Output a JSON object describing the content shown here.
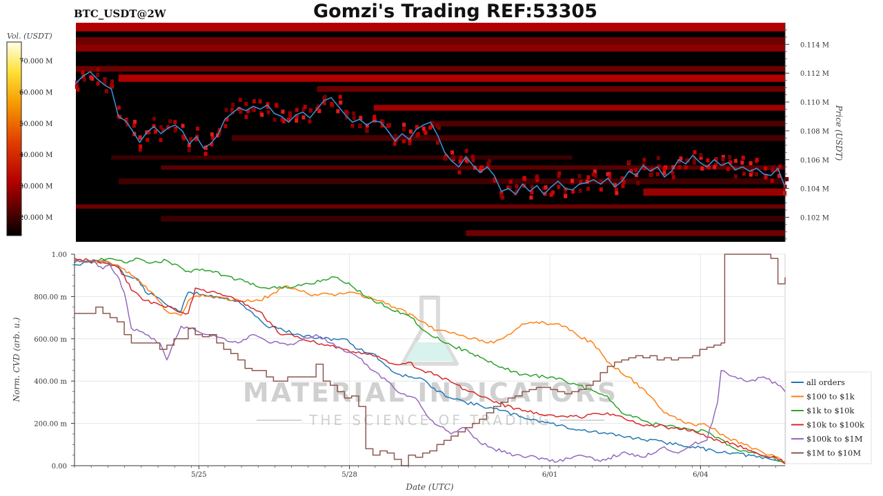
{
  "header": {
    "symbol": "BTC_USDT@2W",
    "title": "Gomzi's Trading REF:53305"
  },
  "watermark": {
    "brand": "MATERIAL INDICATORS",
    "tagline": "THE SCIENCE OF TRADING"
  },
  "colors": {
    "heatmap_bg": "#000000",
    "price_line": "#3a8fd0",
    "colorbar_top": "#fffff0",
    "colorbar_mid": "#f08a00",
    "colorbar_low": "#c80000"
  },
  "chart_data": [
    {
      "type": "heatmap",
      "colorbar_label": "Vol. (USDT)",
      "colorbar_ticks": [
        "70.000 M",
        "60.000 M",
        "50.000 M",
        "40.000 M",
        "30.000 M",
        "20.000 M"
      ],
      "colorbar_values": [
        70,
        60,
        50,
        40,
        30,
        20
      ],
      "colorbar_range": [
        14,
        76
      ],
      "ylabel": "Price (USDT)",
      "y_ticks": [
        "0.114 M",
        "0.112 M",
        "0.110 M",
        "0.108 M",
        "0.106 M",
        "0.104 M",
        "0.102 M"
      ],
      "y_tick_values": [
        0.114,
        0.112,
        0.11,
        0.108,
        0.106,
        0.104,
        0.102
      ],
      "ylim": [
        0.1003,
        0.1155
      ],
      "xlim": [
        0,
        100
      ],
      "price_series": {
        "x": [
          0,
          1,
          2,
          3,
          4,
          5,
          6,
          7,
          8,
          9,
          10,
          11,
          12,
          13,
          14,
          15,
          16,
          17,
          18,
          19,
          20,
          21,
          22,
          23,
          24,
          25,
          26,
          27,
          28,
          29,
          30,
          31,
          32,
          33,
          34,
          35,
          36,
          37,
          38,
          39,
          40,
          41,
          42,
          43,
          44,
          45,
          46,
          47,
          48,
          49,
          50,
          51,
          52,
          53,
          54,
          55,
          56,
          57,
          58,
          59,
          60,
          61,
          62,
          63,
          64,
          65,
          66,
          67,
          68,
          69,
          70,
          71,
          72,
          73,
          74,
          75,
          76,
          77,
          78,
          79,
          80,
          81,
          82,
          83,
          84,
          85,
          86,
          87,
          88,
          89,
          90,
          91,
          92,
          93,
          94,
          95,
          96,
          97,
          98,
          99,
          100
        ],
        "y": [
          0.1113,
          0.1118,
          0.1121,
          0.1116,
          0.1112,
          0.1109,
          0.109,
          0.1087,
          0.108,
          0.1072,
          0.1079,
          0.1083,
          0.1078,
          0.1082,
          0.1084,
          0.108,
          0.1071,
          0.1076,
          0.1068,
          0.1071,
          0.1077,
          0.1088,
          0.1092,
          0.1096,
          0.1094,
          0.1097,
          0.1095,
          0.1098,
          0.1092,
          0.109,
          0.1086,
          0.1091,
          0.1093,
          0.1089,
          0.1095,
          0.1101,
          0.1103,
          0.1097,
          0.1091,
          0.1086,
          0.1088,
          0.1084,
          0.1087,
          0.1086,
          0.108,
          0.1073,
          0.1078,
          0.1074,
          0.1081,
          0.1084,
          0.1086,
          0.1077,
          0.1065,
          0.1059,
          0.1055,
          0.1062,
          0.1056,
          0.1051,
          0.1055,
          0.1049,
          0.1038,
          0.104,
          0.1036,
          0.1043,
          0.1038,
          0.1042,
          0.1036,
          0.1041,
          0.1045,
          0.104,
          0.1039,
          0.1043,
          0.1044,
          0.1046,
          0.1043,
          0.1047,
          0.1041,
          0.1045,
          0.1052,
          0.1049,
          0.1056,
          0.1052,
          0.1055,
          0.1048,
          0.1052,
          0.106,
          0.1057,
          0.1063,
          0.1058,
          0.1055,
          0.106,
          0.1056,
          0.1058,
          0.1053,
          0.1055,
          0.1052,
          0.1054,
          0.105,
          0.1049,
          0.1054,
          0.1041
        ]
      }
    },
    {
      "type": "line",
      "ylabel": "Norm. CVD (arb. u.)",
      "xlabel": "Date (UTC)",
      "x_ticks": [
        "5/25",
        "5/28",
        "6/01",
        "6/04"
      ],
      "x_tick_values": [
        17.5,
        38.7,
        66.9,
        88.1
      ],
      "y_ticks": [
        "1.00",
        "800.00 m",
        "600.00 m",
        "400.00 m",
        "200.00 m",
        "0.00"
      ],
      "y_tick_values": [
        1.0,
        0.8,
        0.6,
        0.4,
        0.2,
        0.0
      ],
      "ylim": [
        0,
        1
      ],
      "xlim": [
        0,
        100
      ],
      "legend_position": "bottom-right",
      "series": [
        {
          "name": "all orders",
          "color": "#1f77b4",
          "x": [
            0,
            4,
            6,
            7,
            9,
            10,
            12,
            13,
            15,
            16,
            18,
            20,
            23,
            27,
            29,
            31,
            35,
            38,
            40,
            42,
            45,
            47,
            49,
            51,
            55,
            59,
            63,
            67,
            71,
            75,
            79,
            83,
            87,
            90,
            93,
            96,
            98,
            99.5,
            100
          ],
          "y": [
            0.95,
            0.97,
            0.95,
            0.9,
            0.88,
            0.82,
            0.79,
            0.76,
            0.73,
            0.82,
            0.81,
            0.8,
            0.78,
            0.66,
            0.65,
            0.62,
            0.6,
            0.6,
            0.55,
            0.53,
            0.44,
            0.42,
            0.41,
            0.35,
            0.3,
            0.27,
            0.23,
            0.2,
            0.17,
            0.15,
            0.13,
            0.11,
            0.09,
            0.07,
            0.06,
            0.04,
            0.03,
            0.02,
            0.01
          ]
        },
        {
          "name": "$100 to $1k",
          "color": "#ff7f0e",
          "x": [
            0,
            5,
            7,
            8,
            10,
            13,
            15,
            16,
            18,
            22,
            26,
            30,
            33,
            37,
            39,
            43,
            45,
            48,
            51,
            55,
            59,
            61,
            63,
            65,
            67,
            69,
            70,
            71,
            73,
            75,
            78,
            81,
            83,
            86,
            89,
            92,
            95,
            97,
            99,
            100
          ],
          "y": [
            0.97,
            0.96,
            0.93,
            0.9,
            0.85,
            0.73,
            0.71,
            0.78,
            0.81,
            0.78,
            0.78,
            0.85,
            0.81,
            0.81,
            0.82,
            0.78,
            0.75,
            0.7,
            0.64,
            0.61,
            0.58,
            0.62,
            0.67,
            0.68,
            0.67,
            0.66,
            0.64,
            0.61,
            0.58,
            0.49,
            0.42,
            0.33,
            0.25,
            0.2,
            0.19,
            0.13,
            0.09,
            0.06,
            0.04,
            0.02
          ]
        },
        {
          "name": "$1k to $10k",
          "color": "#2ca02c",
          "x": [
            0,
            3,
            5,
            7,
            9,
            11,
            13,
            16,
            18,
            21,
            24,
            27,
            30,
            33,
            35,
            37,
            39,
            41,
            44,
            47,
            50,
            53,
            56,
            59,
            63,
            67,
            71,
            75,
            77,
            81,
            85,
            89,
            93,
            96,
            98,
            99.5,
            100
          ],
          "y": [
            0.96,
            0.97,
            0.98,
            0.96,
            0.98,
            0.96,
            0.97,
            0.92,
            0.93,
            0.9,
            0.87,
            0.84,
            0.84,
            0.86,
            0.88,
            0.89,
            0.85,
            0.8,
            0.75,
            0.71,
            0.62,
            0.57,
            0.53,
            0.48,
            0.43,
            0.42,
            0.38,
            0.33,
            0.25,
            0.2,
            0.18,
            0.16,
            0.08,
            0.06,
            0.04,
            0.02,
            0.01
          ]
        },
        {
          "name": "$10k to $100k",
          "color": "#d62728",
          "x": [
            0,
            4,
            6,
            7,
            8,
            10,
            12,
            14,
            16,
            17,
            19,
            22,
            26,
            29,
            31,
            34,
            38,
            42,
            45,
            47,
            49,
            51,
            55,
            59,
            63,
            67,
            71,
            75,
            79,
            84,
            87,
            90,
            93,
            96,
            98,
            99.5,
            100
          ],
          "y": [
            0.98,
            0.96,
            0.94,
            0.9,
            0.83,
            0.78,
            0.76,
            0.74,
            0.72,
            0.84,
            0.82,
            0.8,
            0.73,
            0.62,
            0.61,
            0.58,
            0.55,
            0.52,
            0.48,
            0.49,
            0.45,
            0.43,
            0.36,
            0.3,
            0.26,
            0.24,
            0.23,
            0.25,
            0.2,
            0.18,
            0.17,
            0.12,
            0.1,
            0.06,
            0.04,
            0.03,
            0.01
          ]
        },
        {
          "name": "$100k to $1M",
          "color": "#9467bd",
          "x": [
            0,
            3,
            4,
            5,
            6,
            7,
            8,
            10,
            12,
            13,
            15,
            17,
            20,
            23,
            25,
            27,
            30,
            34,
            36,
            38,
            40,
            42,
            44,
            46,
            48,
            50,
            53,
            55,
            57,
            59,
            62,
            65,
            68,
            71,
            74,
            77,
            80,
            83,
            85,
            87,
            89,
            90.5,
            91,
            93,
            95,
            97,
            99,
            100
          ],
          "y": [
            0.97,
            0.96,
            0.93,
            0.95,
            0.9,
            0.82,
            0.65,
            0.62,
            0.58,
            0.5,
            0.66,
            0.64,
            0.61,
            0.58,
            0.62,
            0.59,
            0.57,
            0.62,
            0.58,
            0.54,
            0.51,
            0.45,
            0.4,
            0.34,
            0.32,
            0.22,
            0.15,
            0.18,
            0.11,
            0.08,
            0.05,
            0.04,
            0.02,
            0.05,
            0.02,
            0.06,
            0.04,
            0.09,
            0.06,
            0.1,
            0.12,
            0.3,
            0.45,
            0.42,
            0.4,
            0.42,
            0.38,
            0.35
          ]
        },
        {
          "name": "$1M to $10M",
          "color": "#8c564b",
          "x": [
            0,
            1,
            2,
            3,
            4,
            5,
            6,
            7,
            8,
            10,
            12,
            13,
            14,
            16,
            17,
            18,
            19,
            20,
            21,
            22,
            23,
            24,
            25,
            26,
            27,
            28,
            30,
            32,
            34,
            35,
            36,
            37,
            38,
            39,
            40,
            41,
            42,
            43,
            44,
            45,
            46,
            47,
            48,
            49,
            50,
            51,
            52,
            53,
            54,
            55,
            56,
            57,
            58,
            59,
            60,
            61,
            62,
            63,
            64,
            65,
            66,
            67,
            68,
            69,
            70,
            71,
            72,
            73,
            74,
            75,
            76,
            77,
            78,
            79,
            80,
            81,
            82,
            83,
            84,
            85,
            86,
            87,
            88,
            89,
            90,
            91,
            91.5,
            92,
            93,
            94,
            95,
            96,
            97,
            98,
            99,
            100
          ],
          "y": [
            0.72,
            0.72,
            0.72,
            0.75,
            0.72,
            0.7,
            0.68,
            0.62,
            0.58,
            0.58,
            0.55,
            0.57,
            0.6,
            0.65,
            0.62,
            0.61,
            0.62,
            0.58,
            0.55,
            0.53,
            0.5,
            0.46,
            0.45,
            0.45,
            0.42,
            0.4,
            0.42,
            0.42,
            0.48,
            0.4,
            0.38,
            0.35,
            0.32,
            0.33,
            0.28,
            0.08,
            0.05,
            0.07,
            0.06,
            0.03,
            0.0,
            0.05,
            0.04,
            0.06,
            0.07,
            0.1,
            0.12,
            0.14,
            0.16,
            0.18,
            0.2,
            0.22,
            0.25,
            0.28,
            0.3,
            0.32,
            0.33,
            0.35,
            0.36,
            0.37,
            0.37,
            0.36,
            0.35,
            0.34,
            0.35,
            0.36,
            0.38,
            0.4,
            0.44,
            0.47,
            0.49,
            0.5,
            0.51,
            0.52,
            0.51,
            0.52,
            0.5,
            0.51,
            0.5,
            0.51,
            0.51,
            0.52,
            0.55,
            0.56,
            0.57,
            0.58,
            1.0,
            1.0,
            1.0,
            1.0,
            1.0,
            1.0,
            1.0,
            0.98,
            0.86,
            0.89
          ]
        }
      ]
    }
  ]
}
